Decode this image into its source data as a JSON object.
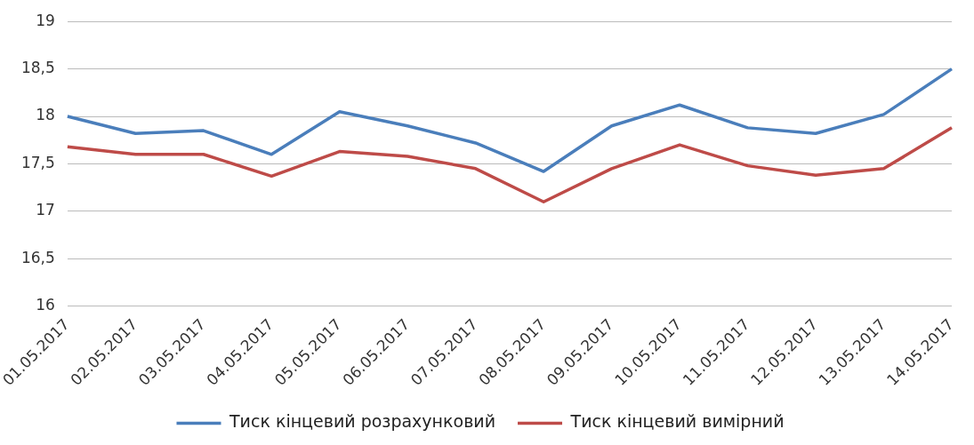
{
  "chart_data": {
    "type": "line",
    "categories": [
      "01.05.2017",
      "02.05.2017",
      "03.05.2017",
      "04.05.2017",
      "05.05.2017",
      "06.05.2017",
      "07.05.2017",
      "08.05.2017",
      "09.05.2017",
      "10.05.2017",
      "11.05.2017",
      "12.05.2017",
      "13.05.2017",
      "14.05.2017"
    ],
    "series": [
      {
        "name": "Тиск кінцевий розрахунковий",
        "color": "#4a7ebb",
        "values": [
          18.0,
          17.82,
          17.85,
          17.6,
          18.05,
          17.9,
          17.72,
          17.42,
          17.9,
          18.12,
          17.88,
          17.82,
          18.02,
          18.5
        ]
      },
      {
        "name": "Тиск кінцевий вимірний",
        "color": "#be4b48",
        "values": [
          17.68,
          17.6,
          17.6,
          17.37,
          17.63,
          17.58,
          17.45,
          17.1,
          17.45,
          17.7,
          17.48,
          17.38,
          17.45,
          17.88
        ]
      }
    ],
    "ylim": [
      16,
      19
    ],
    "yticks": [
      16,
      {
        "value": 16.5,
        "label": "16,5"
      },
      17,
      {
        "value": 17.5,
        "label": "17,5"
      },
      18,
      {
        "value": 18.5,
        "label": "18,5"
      },
      19
    ],
    "grid": "y",
    "legend": "bottom",
    "marker": "none",
    "line_style": "solid"
  }
}
